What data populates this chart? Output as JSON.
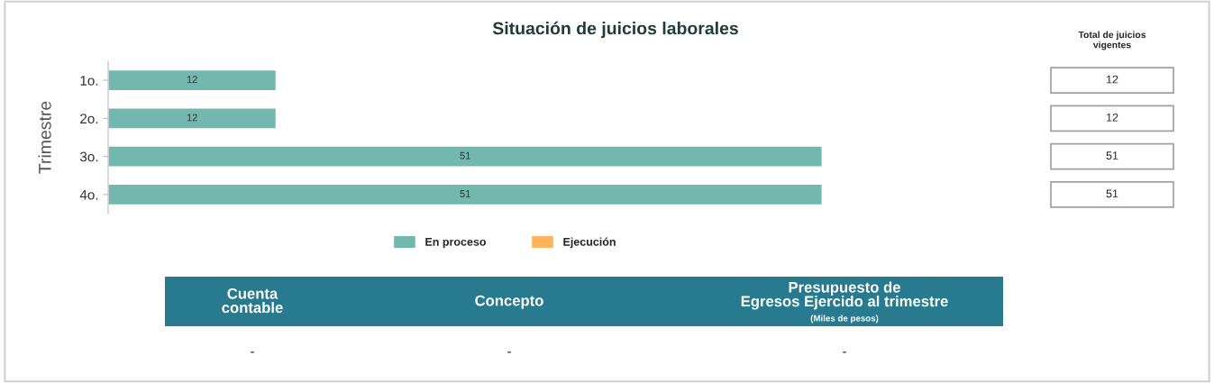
{
  "chart_data": {
    "type": "bar",
    "orientation": "horizontal",
    "title": "Situación de juicios laborales",
    "ylabel": "Trimestre",
    "categories": [
      "1o.",
      "2o.",
      "3o.",
      "4o."
    ],
    "series": [
      {
        "name": "En proceso",
        "color": "#73b8ae",
        "values": [
          12,
          12,
          51,
          51
        ]
      },
      {
        "name": "Ejecución",
        "color": "#ffb35c",
        "values": [
          null,
          null,
          null,
          null
        ]
      }
    ],
    "data_labels": true,
    "legend": "bottom",
    "grid": false,
    "totals": [
      "12",
      "12",
      "51",
      "51"
    ],
    "annotations": [
      "Total de juicios\nvigentes",
      "Cuenta\ncontable",
      "Concepto",
      "Presupuesto de\nEgresos Ejercido al trimestre",
      "(Miles de pesos)",
      "-",
      "-",
      "-"
    ]
  }
}
